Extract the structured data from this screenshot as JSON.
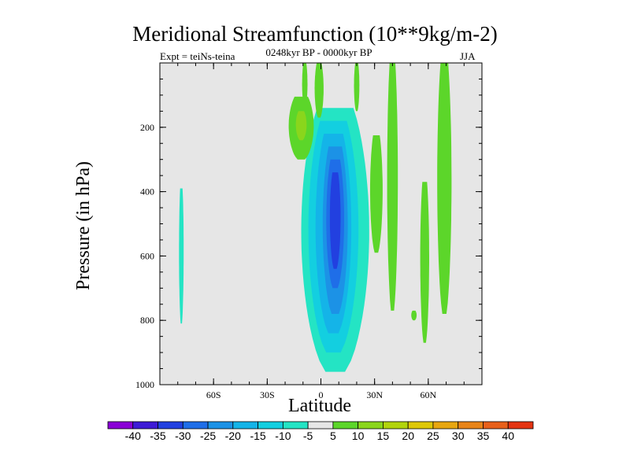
{
  "chart_data": {
    "type": "heatmap",
    "title": "Meridional Streamfunction (10**9kg/m-2)",
    "subtitle_left": "Expt = teiNs-teina",
    "subtitle_center": "0248kyr BP - 0000kyr BP",
    "subtitle_right": "JJA",
    "xlabel": "Latitude",
    "ylabel": "Pressure (in hPa)",
    "xlim": [
      -90,
      90
    ],
    "ylim": [
      1000,
      0
    ],
    "x_ticks": [
      {
        "value": -60,
        "label": "60S"
      },
      {
        "value": -30,
        "label": "30S"
      },
      {
        "value": 0,
        "label": "0"
      },
      {
        "value": 30,
        "label": "30N"
      },
      {
        "value": 60,
        "label": "60N"
      }
    ],
    "y_ticks": [
      {
        "value": 200,
        "label": "200"
      },
      {
        "value": 400,
        "label": "400"
      },
      {
        "value": 600,
        "label": "600"
      },
      {
        "value": 800,
        "label": "800"
      },
      {
        "value": 1000,
        "label": "1000"
      }
    ],
    "colorbar": {
      "levels": [
        "-40",
        "-35",
        "-30",
        "-25",
        "-20",
        "-15",
        "-10",
        "-5",
        "5",
        "10",
        "15",
        "20",
        "25",
        "30",
        "35",
        "40"
      ],
      "colors": [
        "#8a00d6",
        "#3e1bd6",
        "#2240e0",
        "#1f6ee8",
        "#1c92e6",
        "#14b4e8",
        "#13cfe0",
        "#24e4c4",
        "#e6e6e6",
        "#5cd62a",
        "#8ad61c",
        "#b2d40c",
        "#dec808",
        "#e8a610",
        "#e88418",
        "#e8601a",
        "#e43412"
      ]
    },
    "background_color": "#e6e6e6",
    "contour_regions": [
      {
        "name": "cell-south-strip",
        "lat": -78,
        "p_top": 390,
        "p_bot": 810,
        "halfwidth": 1.3,
        "value": -7
      },
      {
        "name": "equatorial-outer",
        "lat": 8,
        "p_top": 140,
        "p_bot": 960,
        "halfwidth": 19,
        "value": -7
      },
      {
        "name": "equatorial-mid1",
        "lat": 7,
        "p_top": 180,
        "p_bot": 900,
        "halfwidth": 14,
        "value": -12
      },
      {
        "name": "equatorial-mid2",
        "lat": 7,
        "p_top": 220,
        "p_bot": 840,
        "halfwidth": 10,
        "value": -17
      },
      {
        "name": "equatorial-mid3",
        "lat": 8,
        "p_top": 260,
        "p_bot": 780,
        "halfwidth": 7,
        "value": -22
      },
      {
        "name": "equatorial-inner",
        "lat": 8,
        "p_top": 300,
        "p_bot": 700,
        "halfwidth": 5,
        "value": -27
      },
      {
        "name": "equatorial-core",
        "lat": 8,
        "p_top": 340,
        "p_bot": 640,
        "halfwidth": 3,
        "value": -32
      },
      {
        "name": "positive-tropical-blob",
        "lat": -11,
        "p_top": 105,
        "p_bot": 300,
        "halfwidth": 7,
        "value": 7
      },
      {
        "name": "positive-tropical-core",
        "lat": -11,
        "p_top": 150,
        "p_bot": 240,
        "halfwidth": 3,
        "value": 12
      },
      {
        "name": "positive-upper-bar1",
        "lat": -9,
        "p_top": 0,
        "p_bot": 140,
        "halfwidth": 1.5,
        "value": 7
      },
      {
        "name": "positive-upper-bar2",
        "lat": -1,
        "p_top": 0,
        "p_bot": 170,
        "halfwidth": 2.5,
        "value": 7
      },
      {
        "name": "positive-upper-bar3",
        "lat": 20,
        "p_top": 0,
        "p_bot": 150,
        "halfwidth": 1.5,
        "value": 7
      },
      {
        "name": "positive-30n-column",
        "lat": 31,
        "p_top": 225,
        "p_bot": 590,
        "halfwidth": 3.5,
        "value": 7
      },
      {
        "name": "positive-40n-column",
        "lat": 40,
        "p_top": 0,
        "p_bot": 770,
        "halfwidth": 3,
        "value": 7
      },
      {
        "name": "positive-52n-blip",
        "lat": 52,
        "p_top": 770,
        "p_bot": 800,
        "halfwidth": 1.5,
        "value": 7
      },
      {
        "name": "positive-58n-column",
        "lat": 58,
        "p_top": 370,
        "p_bot": 870,
        "halfwidth": 2.5,
        "value": 7
      },
      {
        "name": "positive-68n-column",
        "lat": 69,
        "p_top": 0,
        "p_bot": 780,
        "halfwidth": 4,
        "value": 7
      }
    ]
  }
}
